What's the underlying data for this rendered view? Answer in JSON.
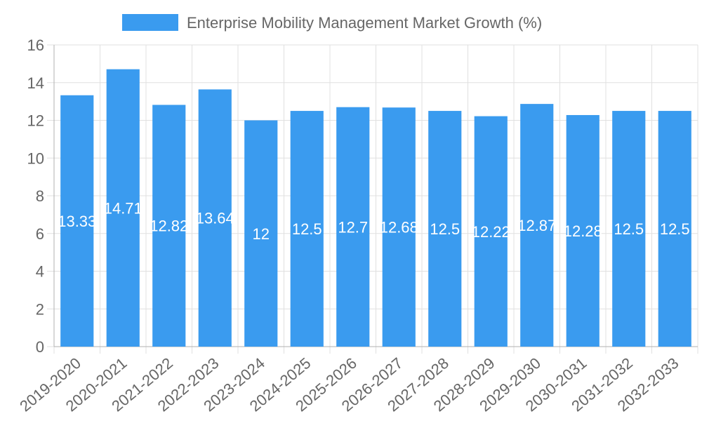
{
  "chart_data": {
    "type": "bar",
    "title": "",
    "xlabel": "",
    "ylabel": "",
    "ylim": [
      0,
      16
    ],
    "yticks": [
      0,
      2,
      4,
      6,
      8,
      10,
      12,
      14,
      16
    ],
    "grid": true,
    "legend_position": "top",
    "categories": [
      "2019-2020",
      "2020-2021",
      "2021-2022",
      "2022-2023",
      "2023-2024",
      "2024-2025",
      "2025-2026",
      "2026-2027",
      "2027-2028",
      "2028-2029",
      "2029-2030",
      "2030-2031",
      "2031-2032",
      "2032-2033"
    ],
    "series": [
      {
        "name": "Enterprise Mobility Management Market Growth (%)",
        "color": "#3a9bef",
        "values": [
          13.33,
          14.71,
          12.82,
          13.64,
          12,
          12.5,
          12.7,
          12.68,
          12.5,
          12.22,
          12.87,
          12.28,
          12.5,
          12.5
        ],
        "labels": [
          "13.33",
          "14.71",
          "12.82",
          "13.64",
          "12",
          "12.5",
          "12.7",
          "12.68",
          "12.5",
          "12.22",
          "12.87",
          "12.28",
          "12.5",
          "12.5"
        ]
      }
    ]
  }
}
